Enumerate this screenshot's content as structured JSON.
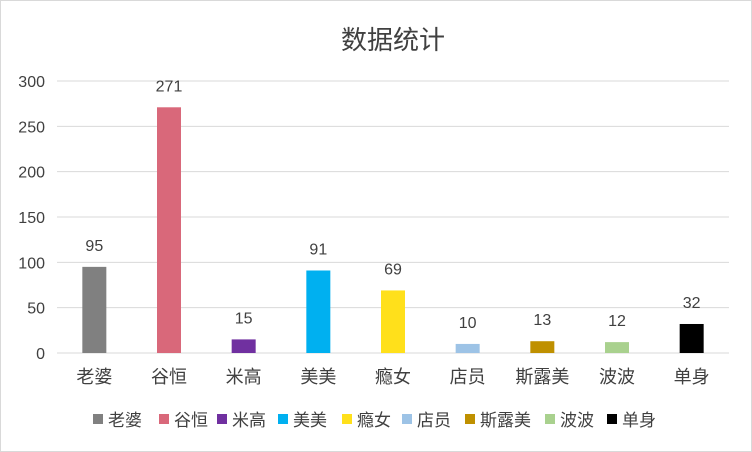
{
  "chart_data": {
    "type": "bar",
    "title": "数据统计",
    "xlabel": "",
    "ylabel": "",
    "categories": [
      "老婆",
      "谷恒",
      "米高",
      "美美",
      "瘾女",
      "店员",
      "斯露美",
      "波波",
      "单身"
    ],
    "values": [
      95,
      271,
      15,
      91,
      69,
      10,
      13,
      12,
      32
    ],
    "colors": [
      "#808080",
      "#d9687a",
      "#7030a0",
      "#00b0f0",
      "#ffe01b",
      "#9dc3e6",
      "#bf9000",
      "#a9d18e",
      "#000000"
    ],
    "ylim": [
      0,
      300
    ],
    "yticks": [
      0,
      50,
      100,
      150,
      200,
      250,
      300
    ],
    "grid": true,
    "legend": "bottom"
  }
}
